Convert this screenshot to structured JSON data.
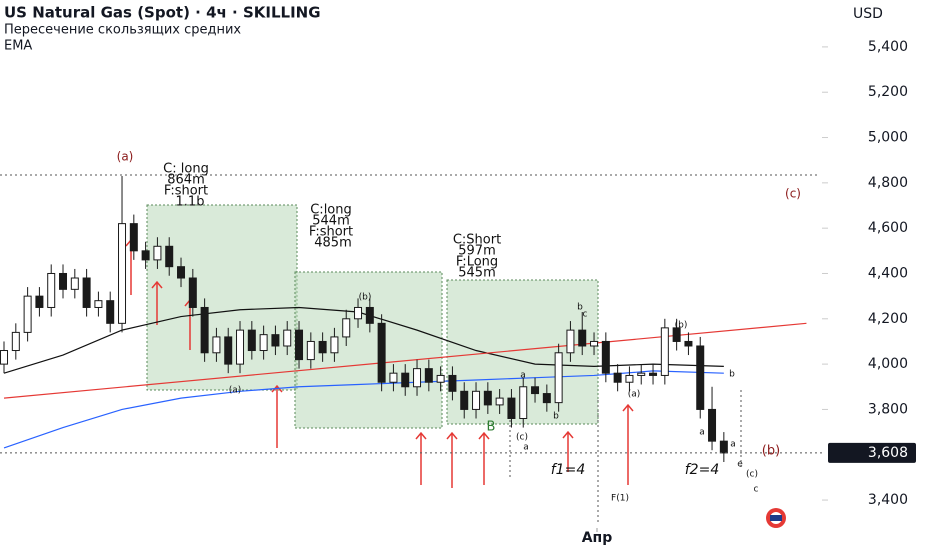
{
  "chart_data": {
    "type": "candlestick",
    "title": "US Natural Gas (Spot) · 4ч · SKILLING",
    "subtitle": "Пересечение скользящих средних",
    "indicator": "EMA",
    "currency": "USD",
    "color": "#1a1a1a",
    "open": [
      4000,
      4060,
      4140,
      4300,
      4250,
      4400,
      4330,
      4380,
      4250,
      4280,
      4180,
      4620,
      4500,
      4460,
      4520,
      4430,
      4380,
      4250,
      4050,
      4120,
      4000,
      4150,
      4060,
      4130,
      4080,
      4150,
      4020,
      4100,
      4050,
      4120,
      4200,
      4250,
      4180,
      3920,
      3960,
      3900,
      3980,
      3920,
      3950,
      3880,
      3800,
      3880,
      3820,
      3850,
      3760,
      3900,
      3870,
      3830,
      4050,
      4150,
      4080,
      4100,
      3960,
      3920,
      3950,
      3960,
      3950,
      4160,
      4100,
      4080,
      3800,
      3660
    ],
    "high": [
      4100,
      4180,
      4340,
      4340,
      4440,
      4440,
      4420,
      4420,
      4320,
      4320,
      4830,
      4660,
      4540,
      4560,
      4560,
      4470,
      4420,
      4290,
      4160,
      4160,
      4190,
      4190,
      4170,
      4170,
      4190,
      4190,
      4140,
      4140,
      4160,
      4240,
      4290,
      4290,
      4220,
      4000,
      4000,
      4020,
      4020,
      3990,
      3990,
      3920,
      3920,
      3920,
      3890,
      3890,
      3940,
      3940,
      3910,
      4090,
      4190,
      4230,
      4140,
      4140,
      4000,
      3990,
      4000,
      4000,
      4200,
      4200,
      4140,
      4120,
      3900,
      3700
    ],
    "low": [
      3960,
      4020,
      4100,
      4210,
      4210,
      4290,
      4290,
      4210,
      4210,
      4140,
      4140,
      4460,
      4420,
      4420,
      4390,
      4340,
      4210,
      4010,
      4010,
      3960,
      3960,
      4020,
      4020,
      4040,
      4040,
      3980,
      3980,
      4010,
      4010,
      4080,
      4160,
      4140,
      3880,
      3880,
      3860,
      3860,
      3880,
      3880,
      3840,
      3760,
      3760,
      3780,
      3780,
      3720,
      3720,
      3830,
      3790,
      3790,
      4010,
      4040,
      4040,
      3920,
      3880,
      3880,
      3910,
      3910,
      3910,
      4060,
      4040,
      3760,
      3620,
      3568
    ],
    "close": [
      4060,
      4140,
      4300,
      4250,
      4400,
      4330,
      4380,
      4250,
      4280,
      4180,
      4620,
      4500,
      4460,
      4520,
      4430,
      4380,
      4250,
      4050,
      4120,
      4000,
      4150,
      4060,
      4130,
      4080,
      4150,
      4020,
      4100,
      4050,
      4120,
      4200,
      4250,
      4180,
      3920,
      3960,
      3900,
      3980,
      3920,
      3950,
      3880,
      3800,
      3880,
      3820,
      3850,
      3760,
      3900,
      3870,
      3830,
      4050,
      4150,
      4080,
      4100,
      3960,
      3920,
      3950,
      3960,
      3950,
      4160,
      4100,
      4080,
      3800,
      3660,
      3608
    ],
    "lines": [
      {
        "color": "#111111",
        "x": [
          0,
          5,
          10,
          15,
          20,
          25,
          30,
          35,
          40,
          45,
          50,
          55,
          61
        ],
        "values": [
          3960,
          4040,
          4150,
          4210,
          4240,
          4250,
          4230,
          4150,
          4060,
          4000,
          3990,
          4000,
          3990
        ]
      },
      {
        "color": "#2962ff",
        "x": [
          0,
          5,
          10,
          15,
          20,
          25,
          30,
          35,
          40,
          45,
          50,
          55,
          61
        ],
        "values": [
          3630,
          3720,
          3800,
          3850,
          3880,
          3900,
          3910,
          3920,
          3930,
          3940,
          3950,
          3970,
          3960
        ]
      },
      {
        "color": "#e53935",
        "x": [
          0,
          68
        ],
        "values": [
          3850,
          4180
        ]
      }
    ],
    "ylim": [
      3312,
      5607
    ],
    "yticks": [
      {
        "value": 3400,
        "label": "3,400"
      },
      {
        "value": 3800,
        "label": "3,800"
      },
      {
        "value": 4000,
        "label": "4,000"
      },
      {
        "value": 4200,
        "label": "4,200"
      },
      {
        "value": 4400,
        "label": "4,400"
      },
      {
        "value": 4600,
        "label": "4,600"
      },
      {
        "value": 4800,
        "label": "4,800"
      },
      {
        "value": 5000,
        "label": "5,000"
      },
      {
        "value": 5200,
        "label": "5,200"
      },
      {
        "value": 5400,
        "label": "5,400"
      }
    ],
    "xlim": [
      -0.34,
      78.64
    ],
    "xticks": [
      {
        "value": 50.25,
        "label": "Апр"
      }
    ],
    "last_price": {
      "value": 3608,
      "label": "3,608"
    },
    "annotations": [
      "(a)",
      "C: long",
      "864m",
      "F:short",
      "1.1b",
      "C:long",
      "544m",
      "F:short",
      "485m",
      "C:Short",
      "597m",
      "F:Long",
      "545m",
      "(c)",
      "(b)",
      "(b)",
      "(a)",
      "B",
      "a",
      "b",
      "c",
      "(c)",
      "a",
      "b",
      "a",
      "f1=4",
      "f2=4",
      "F(1)",
      "(b)",
      "(a)",
      "b",
      "a",
      "e",
      "(c)",
      "c"
    ]
  }
}
